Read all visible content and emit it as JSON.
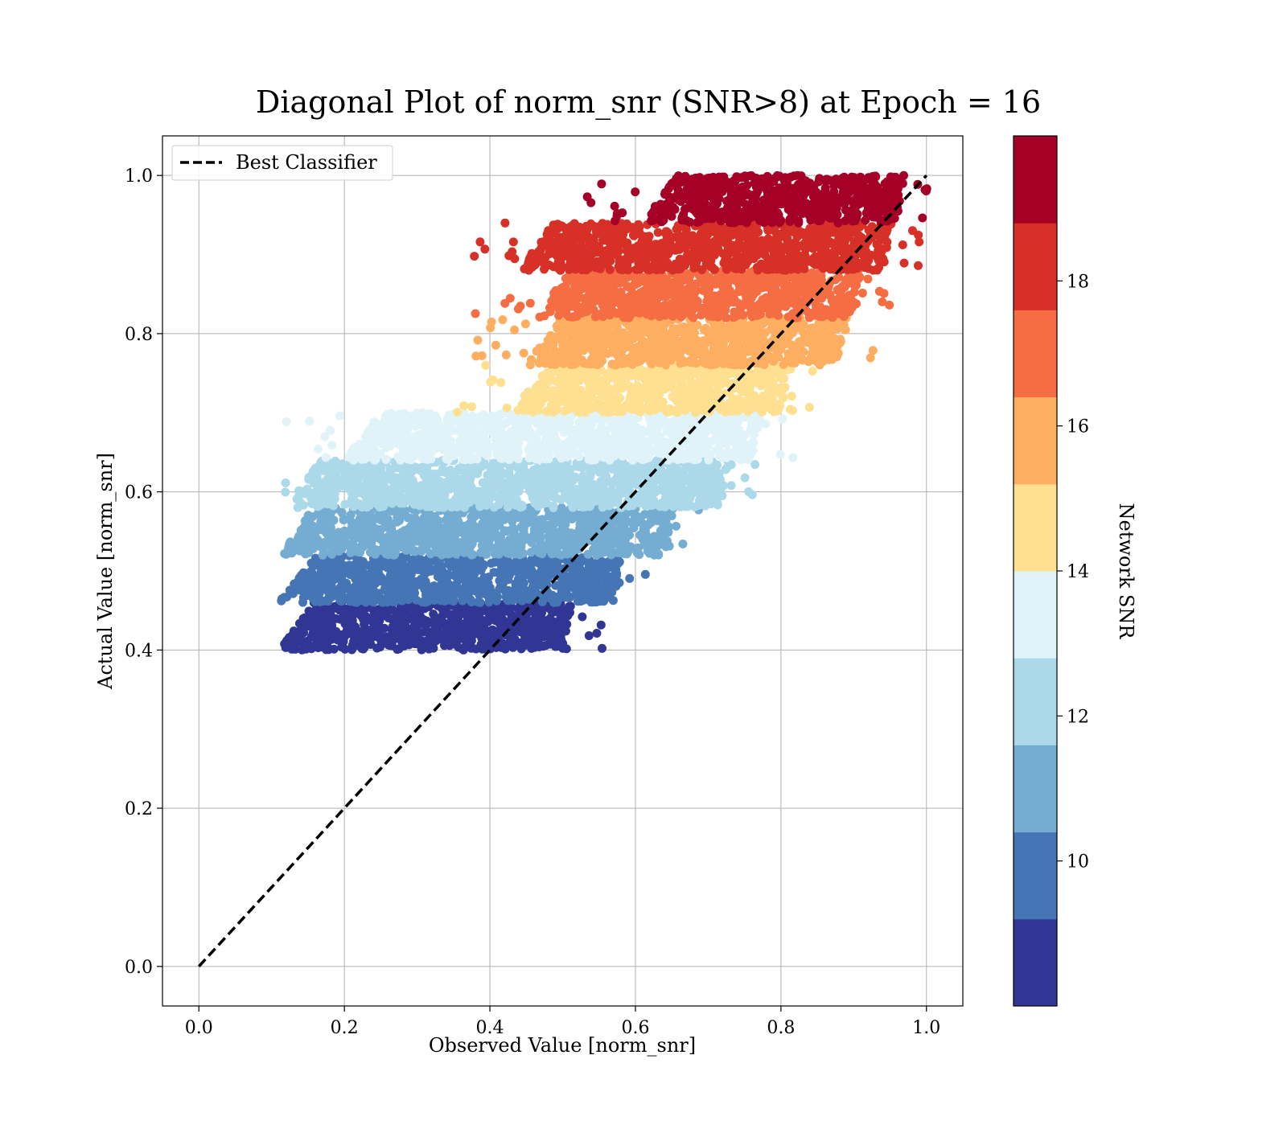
{
  "chart_data": {
    "type": "scatter",
    "title": "Diagonal Plot of norm_snr (SNR>8) at Epoch = 16",
    "xlabel": "Observed Value [norm_snr]",
    "ylabel": "Actual Value [norm_snr]",
    "xlim": [
      -0.05,
      1.05
    ],
    "ylim": [
      -0.05,
      1.05
    ],
    "xticks": [
      "0.0",
      "0.2",
      "0.4",
      "0.6",
      "0.8",
      "1.0"
    ],
    "yticks": [
      "0.0",
      "0.2",
      "0.4",
      "0.6",
      "0.8",
      "1.0"
    ],
    "grid": true,
    "legend": {
      "position": "upper-left",
      "entries": [
        "Best Classifier"
      ]
    },
    "reference_line": {
      "name": "Best Classifier",
      "style": "dashed",
      "color": "#000000",
      "x": [
        0,
        1
      ],
      "y": [
        0,
        1
      ]
    },
    "colorbar": {
      "label": "Network SNR",
      "range": [
        8,
        20
      ],
      "ticks": [
        "10",
        "12",
        "14",
        "16",
        "18"
      ],
      "colors": [
        "#313695",
        "#4575b4",
        "#74add1",
        "#abd9e9",
        "#e0f3f8",
        "#fee090",
        "#fdae61",
        "#f46d43",
        "#d73027",
        "#a50026"
      ]
    },
    "bands": [
      {
        "snr": [
          8,
          9.2
        ],
        "color": "#313695",
        "y": [
          0.4,
          0.46
        ],
        "x": [
          0.11,
          0.5
        ]
      },
      {
        "snr": [
          9.2,
          10.4
        ],
        "color": "#4575b4",
        "y": [
          0.46,
          0.52
        ],
        "x": [
          0.11,
          0.57
        ]
      },
      {
        "snr": [
          10.4,
          11.6
        ],
        "color": "#74add1",
        "y": [
          0.52,
          0.58
        ],
        "x": [
          0.11,
          0.64
        ]
      },
      {
        "snr": [
          11.6,
          12.8
        ],
        "color": "#abd9e9",
        "y": [
          0.58,
          0.64
        ],
        "x": [
          0.12,
          0.72
        ]
      },
      {
        "snr": [
          12.8,
          14.0
        ],
        "color": "#e0f3f8",
        "y": [
          0.64,
          0.7
        ],
        "x": [
          0.2,
          0.76
        ]
      },
      {
        "snr": [
          14.0,
          15.2
        ],
        "color": "#fee090",
        "y": [
          0.7,
          0.76
        ],
        "x": [
          0.43,
          0.8
        ]
      },
      {
        "snr": [
          15.2,
          16.4
        ],
        "color": "#fdae61",
        "y": [
          0.76,
          0.82
        ],
        "x": [
          0.45,
          0.88
        ]
      },
      {
        "snr": [
          16.4,
          17.6
        ],
        "color": "#f46d43",
        "y": [
          0.82,
          0.88
        ],
        "x": [
          0.46,
          0.9
        ]
      },
      {
        "snr": [
          17.6,
          18.8
        ],
        "color": "#d73027",
        "y": [
          0.88,
          0.94
        ],
        "x": [
          0.44,
          0.94
        ]
      },
      {
        "snr": [
          18.8,
          20.0
        ],
        "color": "#a50026",
        "y": [
          0.94,
          1.0
        ],
        "x": [
          0.61,
          0.96
        ]
      }
    ]
  }
}
